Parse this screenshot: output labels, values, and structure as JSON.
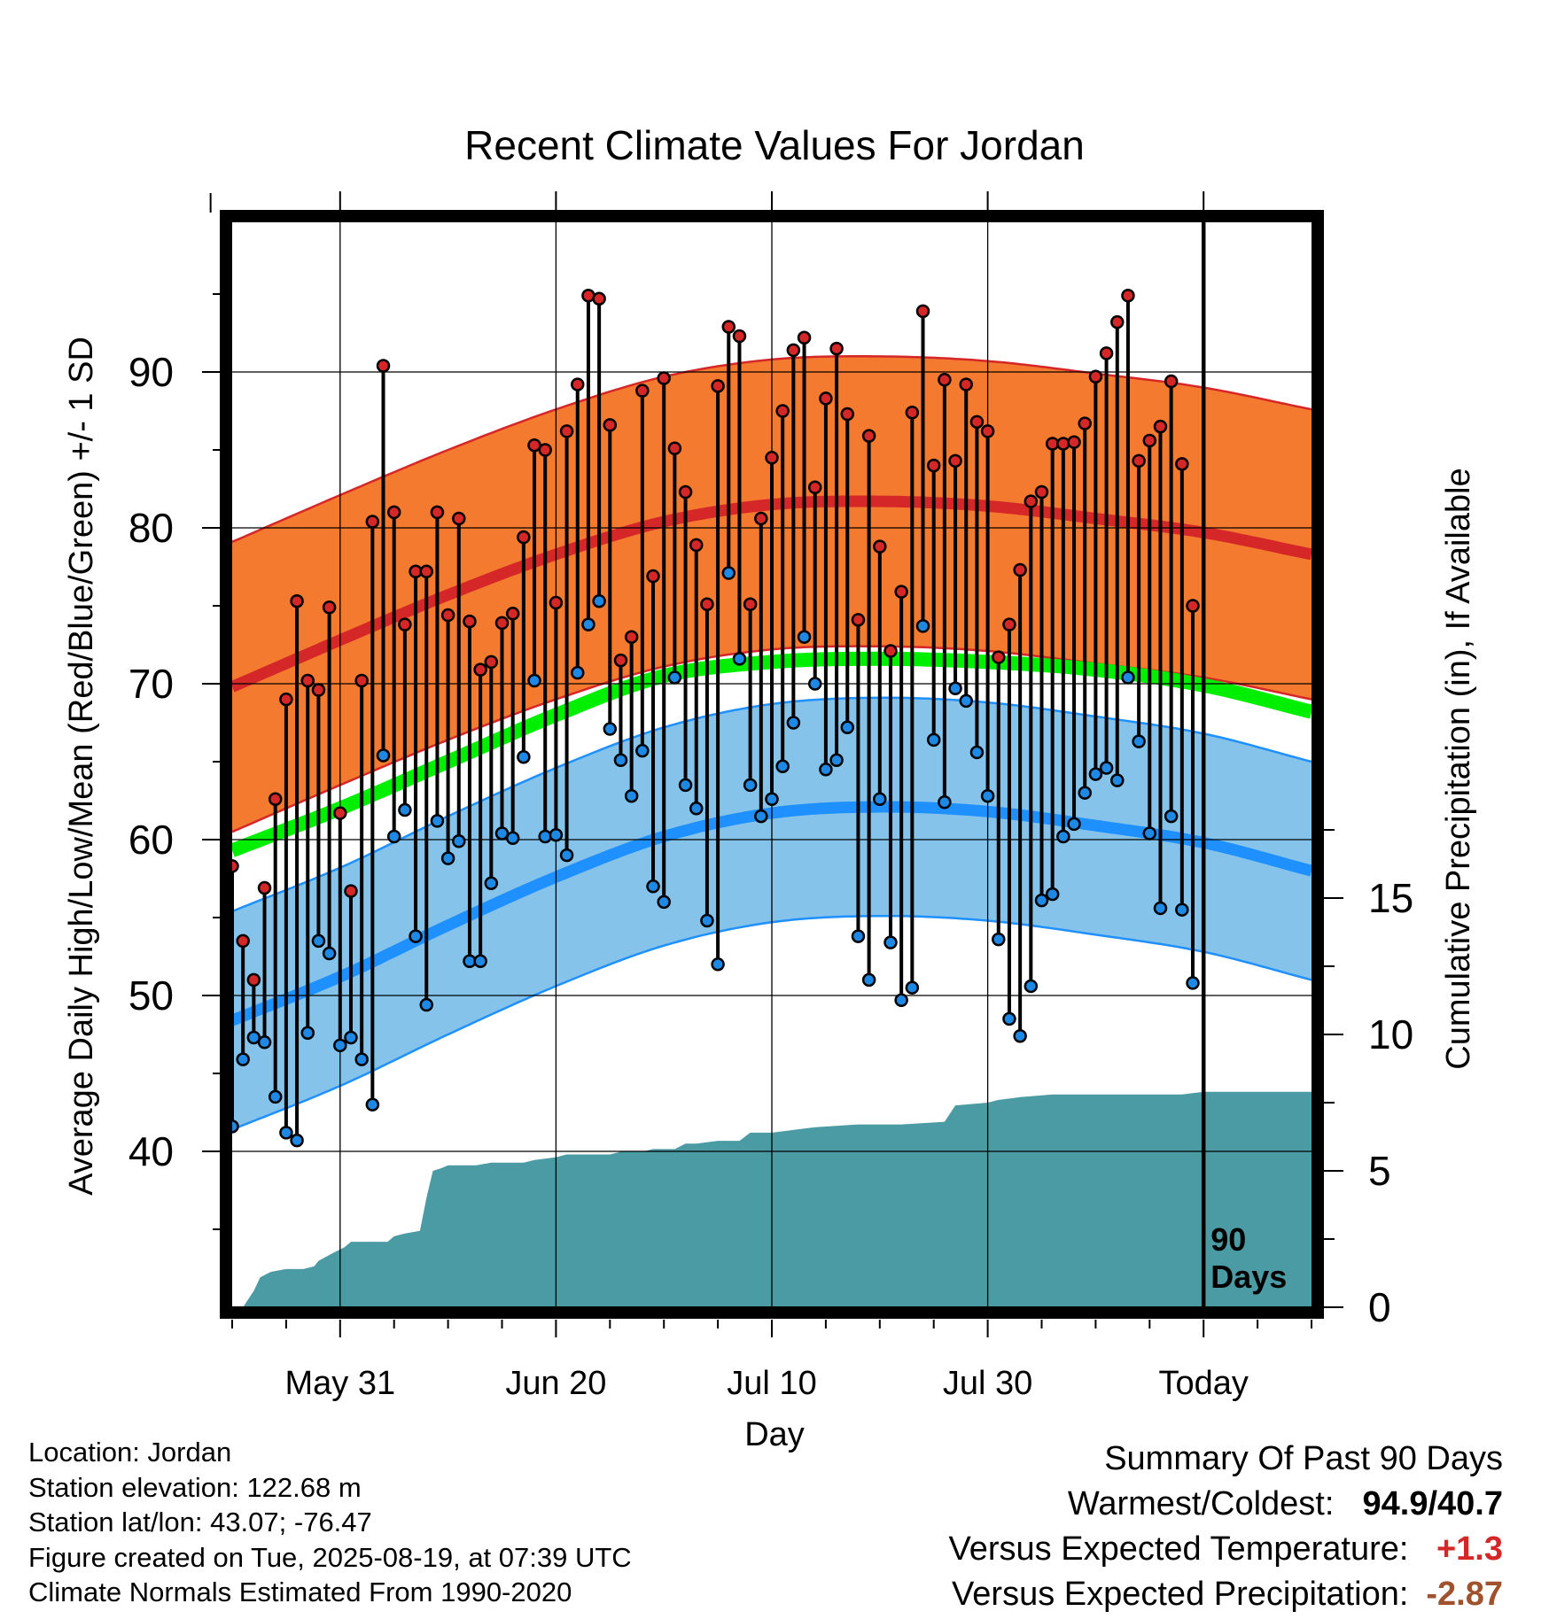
{
  "chart_data": {
    "type": "line",
    "title": "Recent Climate Values For Jordan",
    "xlabel": "Day",
    "ylabel": "Average Daily High/Low/Mean (Red/Blue/Green) +/- 1 SD",
    "y2label": "Cumulative Precipitation (in), If Available",
    "ylim": [
      30,
      100
    ],
    "y2lim": [
      0,
      40
    ],
    "yticks": [
      40,
      50,
      60,
      70,
      80,
      90
    ],
    "y2ticks": [
      0,
      5,
      10,
      15
    ],
    "xlim": [
      0,
      100
    ],
    "x_ticks": [
      {
        "day": 10,
        "label": "May 31"
      },
      {
        "day": 30,
        "label": "Jun 20"
      },
      {
        "day": 50,
        "label": "Jul 10"
      },
      {
        "day": 70,
        "label": "Jul 30"
      },
      {
        "day": 90,
        "label": "Today"
      }
    ],
    "today_marker": {
      "day": 90,
      "label_line1": "90",
      "label_line2": "Days"
    },
    "grid": true,
    "colors": {
      "high": "#d62728",
      "high_band": "#f47a30",
      "low": "#1e90ff",
      "low_band": "#85c3ea",
      "mean": "#00ee00",
      "precip": "#4a9ba3",
      "point_high": "#d62728",
      "point_low": "#1e88e5"
    },
    "normals_days": [
      0,
      10,
      20,
      30,
      40,
      50,
      60,
      70,
      80,
      90,
      100
    ],
    "normal_high": [
      69.8,
      72.8,
      75.7,
      78.3,
      80.4,
      81.5,
      81.7,
      81.4,
      80.6,
      79.7,
      78.3
    ],
    "normal_high_sd": 9.3,
    "normal_low": [
      48.4,
      51.2,
      54.5,
      57.6,
      60.2,
      61.7,
      62.1,
      61.8,
      60.9,
      59.8,
      58.0
    ],
    "normal_low_sd": 7.0,
    "normal_mean": [
      59.3,
      62.0,
      65.0,
      68.0,
      70.5,
      71.4,
      71.6,
      71.4,
      70.9,
      69.9,
      68.2
    ],
    "daily_high": [
      58.3,
      53.5,
      51.0,
      56.9,
      62.6,
      69.0,
      75.3,
      70.2,
      69.6,
      74.9,
      61.7,
      56.7,
      70.2,
      80.4,
      90.4,
      81.0,
      73.8,
      77.2,
      77.2,
      81.0,
      74.4,
      80.6,
      74.0,
      70.9,
      71.4,
      73.9,
      74.5,
      79.4,
      85.3,
      85.0,
      75.2,
      86.2,
      89.2,
      94.9,
      94.7,
      86.6,
      71.5,
      73.0,
      88.8,
      76.9,
      89.6,
      85.1,
      82.3,
      78.9,
      75.1,
      89.1,
      92.9,
      92.3,
      75.1,
      80.6,
      84.5,
      87.5,
      91.4,
      92.2,
      82.6,
      88.3,
      91.5,
      87.3,
      74.1,
      85.9,
      78.8,
      72.1,
      75.9,
      87.4,
      93.9,
      84.0,
      89.5,
      84.3,
      89.2,
      86.8,
      86.2,
      71.7,
      73.8,
      77.3,
      81.7,
      82.3,
      85.4,
      85.4,
      85.5,
      86.7,
      89.7,
      91.2,
      93.2,
      94.9,
      84.3,
      85.6,
      86.5,
      89.4,
      84.1,
      75.0
    ],
    "daily_low": [
      41.6,
      45.9,
      47.3,
      47.0,
      43.5,
      41.2,
      40.7,
      47.6,
      53.5,
      52.7,
      46.8,
      47.3,
      45.9,
      43.0,
      65.4,
      60.2,
      61.9,
      53.8,
      49.4,
      61.2,
      58.8,
      59.9,
      52.2,
      52.2,
      57.2,
      60.4,
      60.1,
      65.3,
      70.2,
      60.2,
      60.3,
      59.0,
      70.7,
      73.8,
      75.3,
      67.1,
      65.1,
      62.8,
      65.7,
      57.0,
      56.0,
      70.4,
      63.5,
      62.0,
      54.8,
      52.0,
      77.1,
      71.6,
      63.5,
      61.5,
      62.6,
      64.7,
      67.5,
      73.0,
      70.0,
      64.5,
      65.1,
      67.2,
      53.8,
      51.0,
      62.6,
      53.4,
      49.7,
      50.5,
      73.7,
      66.4,
      62.4,
      69.7,
      68.9,
      65.6,
      62.8,
      53.6,
      48.5,
      47.4,
      50.6,
      56.1,
      56.5,
      60.2,
      61.0,
      63.0,
      64.2,
      64.6,
      63.8,
      70.4,
      66.3,
      60.4,
      55.6,
      61.5,
      55.5,
      50.8
    ],
    "cumulative_precip": [
      [
        0,
        0.0
      ],
      [
        1,
        0.0
      ],
      [
        2,
        0.6
      ],
      [
        2.6,
        1.1
      ],
      [
        3.6,
        1.3
      ],
      [
        5,
        1.4
      ],
      [
        6.6,
        1.4
      ],
      [
        7.6,
        1.5
      ],
      [
        8,
        1.7
      ],
      [
        9.4,
        2.0
      ],
      [
        10.4,
        2.2
      ],
      [
        11,
        2.4
      ],
      [
        12.6,
        2.4
      ],
      [
        14.4,
        2.4
      ],
      [
        15,
        2.6
      ],
      [
        16,
        2.7
      ],
      [
        17.4,
        2.8
      ],
      [
        18,
        4.0
      ],
      [
        18.6,
        5.0
      ],
      [
        19.4,
        5.1
      ],
      [
        20,
        5.2
      ],
      [
        22.6,
        5.2
      ],
      [
        24,
        5.3
      ],
      [
        27,
        5.3
      ],
      [
        28,
        5.4
      ],
      [
        30,
        5.5
      ],
      [
        31,
        5.6
      ],
      [
        33,
        5.6
      ],
      [
        35,
        5.6
      ],
      [
        36,
        5.7
      ],
      [
        38,
        5.7
      ],
      [
        39,
        5.8
      ],
      [
        41,
        5.8
      ],
      [
        42,
        6.0
      ],
      [
        43,
        6.0
      ],
      [
        45,
        6.1
      ],
      [
        47,
        6.1
      ],
      [
        48,
        6.4
      ],
      [
        50,
        6.4
      ],
      [
        52,
        6.5
      ],
      [
        54,
        6.6
      ],
      [
        58,
        6.7
      ],
      [
        62,
        6.7
      ],
      [
        66,
        6.8
      ],
      [
        67,
        7.4
      ],
      [
        70,
        7.5
      ],
      [
        71,
        7.6
      ],
      [
        73,
        7.7
      ],
      [
        76,
        7.8
      ],
      [
        79,
        7.8
      ],
      [
        84,
        7.8
      ],
      [
        88,
        7.8
      ],
      [
        90,
        7.9
      ],
      [
        100,
        7.9
      ]
    ]
  },
  "info": {
    "location": "Location: Jordan",
    "elevation": "Station elevation: 122.68 m",
    "latlon": "Station lat/lon: 43.07; -76.47",
    "created": "Figure created on Tue, 2025-08-19, at 07:39 UTC",
    "normals": "Climate Normals Estimated From 1990-2020"
  },
  "summary": {
    "title": "Summary Of Past 90 Days",
    "warmest_label": "Warmest/Coldest:",
    "warmest_value": "94.9/40.7",
    "temp_label": "Versus Expected Temperature:",
    "temp_value": "+1.3",
    "temp_color": "#d62728",
    "precip_label": "Versus Expected Precipitation:",
    "precip_value": "-2.87",
    "precip_color": "#a0522d"
  }
}
